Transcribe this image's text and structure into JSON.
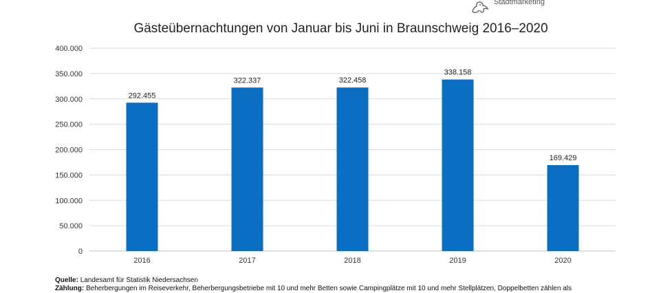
{
  "logo": {
    "text": "Stadtmarketing",
    "icon": "lion-icon"
  },
  "chart_data": {
    "type": "bar",
    "title": "Gästeübernachtungen von Januar bis Juni in Braunschweig 2016–2020",
    "xlabel": "",
    "ylabel": "",
    "categories": [
      "2016",
      "2017",
      "2018",
      "2019",
      "2020"
    ],
    "values": [
      292455,
      322337,
      322458,
      338158,
      169429
    ],
    "value_labels": [
      "292.455",
      "322.337",
      "322.458",
      "338.158",
      "169.429"
    ],
    "ylim": [
      0,
      400000
    ],
    "yticks": [
      0,
      50000,
      100000,
      150000,
      200000,
      250000,
      300000,
      350000,
      400000
    ],
    "ytick_labels": [
      "0",
      "50.000",
      "100.000",
      "150.000",
      "200.000",
      "250.000",
      "300.000",
      "350.000",
      "400.000"
    ],
    "grid": true,
    "bar_color": "#0a6fc2",
    "grid_color": "#d9d9d9"
  },
  "footnote": {
    "source_label": "Quelle:",
    "source_text": "Landesamt für Statistik Niedersachsen",
    "count_label": "Zählung:",
    "count_text": "Beherbergungen im Reiseverkehr, Beherbergungsbetriebe mit 10 und mehr Betten sowie Campingplätze mit 10 und mehr Stellplätzen, Doppelbetten zählen als"
  }
}
